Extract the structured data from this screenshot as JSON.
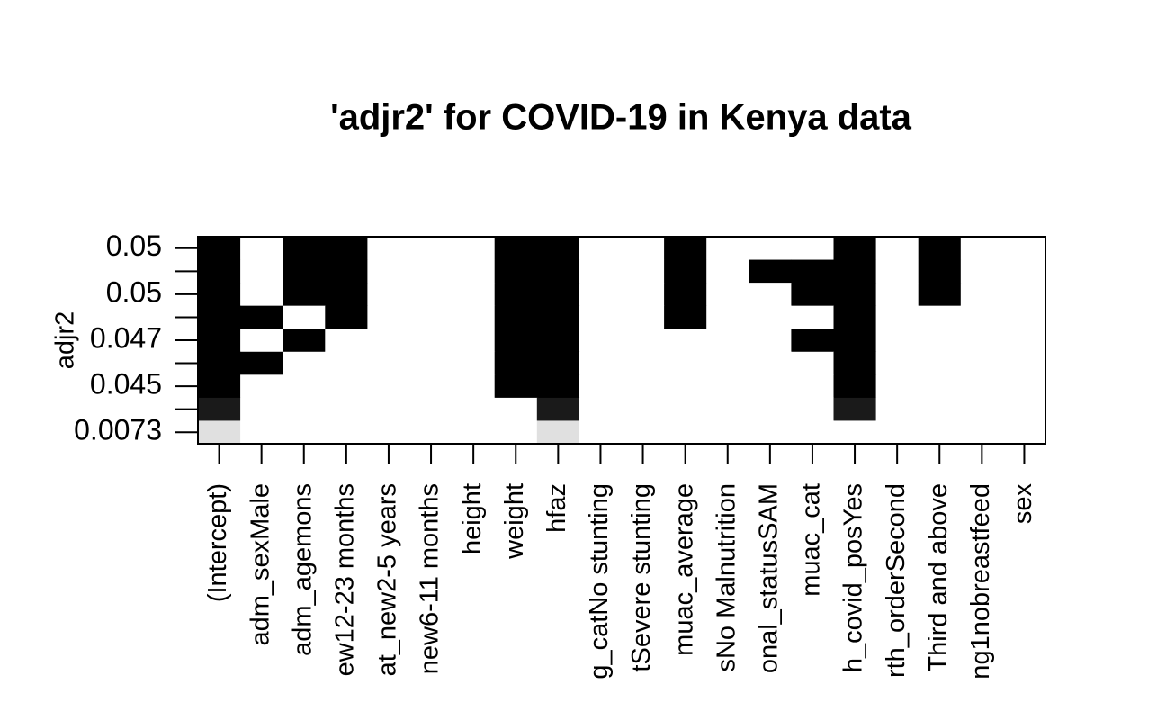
{
  "chart_data": {
    "type": "subset-map",
    "title": "'adjr2' for COVID-19 in Kenya data",
    "ylabel": "adjr2",
    "ycategories": [
      "0.05",
      null,
      "0.05",
      null,
      "0.047",
      null,
      "0.045",
      null,
      "0.0073"
    ],
    "xcategories": [
      "(Intercept)",
      "adm_sexMale",
      "adm_agemons",
      "ew12-23 months",
      "at_new2-5 years",
      "new6-11 months",
      "height",
      "weight",
      "hfaz",
      "g_catNo stunting",
      "tSevere stunting",
      "muac_average",
      "sNo Malnutrition",
      "onal_statusSAM",
      "muac_cat",
      "h_covid_posYes",
      "rth_orderSecond",
      "Third and above",
      "ng1nobreastfeed",
      "sex"
    ],
    "row_colors": [
      "#000000",
      "#000000",
      "#000000",
      "#000000",
      "#000000",
      "#000000",
      "#000000",
      "#1a1a1a",
      "#e0e0e0"
    ],
    "cells": [
      [
        1,
        0,
        1,
        1,
        0,
        0,
        0,
        1,
        1,
        0,
        0,
        1,
        0,
        0,
        0,
        1,
        0,
        1,
        0,
        0
      ],
      [
        1,
        0,
        1,
        1,
        0,
        0,
        0,
        1,
        1,
        0,
        0,
        1,
        0,
        1,
        1,
        1,
        0,
        1,
        0,
        0
      ],
      [
        1,
        0,
        1,
        1,
        0,
        0,
        0,
        1,
        1,
        0,
        0,
        1,
        0,
        0,
        1,
        1,
        0,
        1,
        0,
        0
      ],
      [
        1,
        1,
        0,
        1,
        0,
        0,
        0,
        1,
        1,
        0,
        0,
        1,
        0,
        0,
        0,
        1,
        0,
        0,
        0,
        0
      ],
      [
        1,
        0,
        1,
        0,
        0,
        0,
        0,
        1,
        1,
        0,
        0,
        0,
        0,
        0,
        1,
        1,
        0,
        0,
        0,
        0
      ],
      [
        1,
        1,
        0,
        0,
        0,
        0,
        0,
        1,
        1,
        0,
        0,
        0,
        0,
        0,
        0,
        1,
        0,
        0,
        0,
        0
      ],
      [
        1,
        0,
        0,
        0,
        0,
        0,
        0,
        1,
        1,
        0,
        0,
        0,
        0,
        0,
        0,
        1,
        0,
        0,
        0,
        0
      ],
      [
        1,
        0,
        0,
        0,
        0,
        0,
        0,
        0,
        1,
        0,
        0,
        0,
        0,
        0,
        0,
        1,
        0,
        0,
        0,
        0
      ],
      [
        1,
        0,
        0,
        0,
        0,
        0,
        0,
        0,
        1,
        0,
        0,
        0,
        0,
        0,
        0,
        0,
        0,
        0,
        0,
        0
      ]
    ]
  }
}
